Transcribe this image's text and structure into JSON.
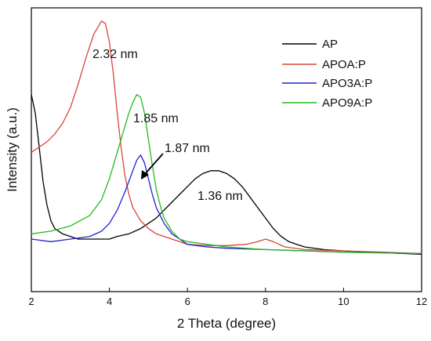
{
  "chart_data": {
    "type": "line",
    "title": "",
    "xlabel": "2 Theta (degree)",
    "ylabel": "Intensity (a.u.)",
    "xlim": [
      2,
      12
    ],
    "x_ticks": [
      2,
      4,
      6,
      8,
      10,
      12
    ],
    "x_tick_labels": [
      "2",
      "4",
      "6",
      "8",
      "10",
      "12"
    ],
    "y_ticks_shown": false,
    "grid": false,
    "legend_position": "top-right",
    "series": [
      {
        "name": "AP",
        "color": "#000000",
        "x": [
          2.0,
          2.1,
          2.2,
          2.3,
          2.4,
          2.5,
          2.6,
          2.8,
          3.0,
          3.2,
          3.5,
          3.8,
          4.0,
          4.2,
          4.5,
          4.8,
          5.0,
          5.2,
          5.4,
          5.6,
          5.8,
          6.0,
          6.2,
          6.4,
          6.6,
          6.8,
          7.0,
          7.2,
          7.4,
          7.6,
          7.8,
          8.0,
          8.2,
          8.4,
          8.6,
          8.8,
          9.0,
          9.5,
          10.0,
          10.5,
          11.0,
          11.5,
          12.0
        ],
        "y": [
          0.75,
          0.68,
          0.55,
          0.42,
          0.33,
          0.27,
          0.24,
          0.22,
          0.21,
          0.2,
          0.2,
          0.2,
          0.2,
          0.21,
          0.22,
          0.24,
          0.26,
          0.28,
          0.31,
          0.34,
          0.37,
          0.4,
          0.43,
          0.45,
          0.46,
          0.46,
          0.45,
          0.43,
          0.4,
          0.36,
          0.32,
          0.28,
          0.24,
          0.21,
          0.19,
          0.18,
          0.17,
          0.16,
          0.155,
          0.15,
          0.148,
          0.145,
          0.142
        ]
      },
      {
        "name": "APOA:P",
        "color": "#d9453a",
        "x": [
          2.0,
          2.2,
          2.4,
          2.6,
          2.8,
          3.0,
          3.2,
          3.4,
          3.6,
          3.8,
          3.9,
          4.0,
          4.1,
          4.2,
          4.3,
          4.4,
          4.5,
          4.6,
          4.8,
          5.0,
          5.2,
          5.4,
          5.6,
          5.8,
          6.0,
          6.5,
          7.0,
          7.5,
          7.8,
          8.0,
          8.2,
          8.5,
          9.0,
          10.0,
          11.0,
          12.0
        ],
        "y": [
          0.53,
          0.55,
          0.57,
          0.6,
          0.64,
          0.7,
          0.79,
          0.89,
          0.98,
          1.03,
          1.02,
          0.95,
          0.83,
          0.68,
          0.55,
          0.44,
          0.37,
          0.32,
          0.27,
          0.24,
          0.22,
          0.21,
          0.2,
          0.19,
          0.18,
          0.175,
          0.175,
          0.18,
          0.19,
          0.2,
          0.19,
          0.17,
          0.16,
          0.155,
          0.15,
          0.145
        ]
      },
      {
        "name": "APO3A:P",
        "color": "#2222cc",
        "x": [
          2.0,
          2.5,
          3.0,
          3.5,
          3.8,
          4.0,
          4.2,
          4.4,
          4.6,
          4.7,
          4.8,
          4.9,
          5.0,
          5.1,
          5.2,
          5.4,
          5.6,
          5.8,
          6.0,
          6.5,
          7.0,
          8.0,
          9.0,
          10.0,
          11.0,
          12.0
        ],
        "y": [
          0.2,
          0.19,
          0.2,
          0.21,
          0.23,
          0.26,
          0.31,
          0.38,
          0.46,
          0.5,
          0.52,
          0.49,
          0.43,
          0.37,
          0.32,
          0.26,
          0.22,
          0.2,
          0.18,
          0.17,
          0.165,
          0.16,
          0.155,
          0.15,
          0.148,
          0.145
        ]
      },
      {
        "name": "APO9A:P",
        "color": "#22bb22",
        "x": [
          2.0,
          2.5,
          3.0,
          3.5,
          3.8,
          4.0,
          4.2,
          4.4,
          4.5,
          4.6,
          4.7,
          4.8,
          4.9,
          5.0,
          5.1,
          5.2,
          5.3,
          5.4,
          5.6,
          5.8,
          6.0,
          6.5,
          7.0,
          8.0,
          9.0,
          10.0,
          11.0,
          12.0
        ],
        "y": [
          0.22,
          0.23,
          0.25,
          0.29,
          0.35,
          0.43,
          0.53,
          0.63,
          0.68,
          0.72,
          0.75,
          0.74,
          0.68,
          0.58,
          0.48,
          0.39,
          0.33,
          0.28,
          0.23,
          0.2,
          0.19,
          0.18,
          0.17,
          0.16,
          0.155,
          0.15,
          0.147,
          0.145
        ]
      }
    ],
    "annotations": [
      {
        "text": "2.32 nm",
        "x": 3.85,
        "y": 1.03
      },
      {
        "text": "1.85 nm",
        "x": 4.75,
        "y": 0.75
      },
      {
        "text": "1.87 nm",
        "x": 4.8,
        "y": 0.52
      },
      {
        "text": "1.36 nm",
        "x": 6.6,
        "y": 0.46
      }
    ]
  }
}
